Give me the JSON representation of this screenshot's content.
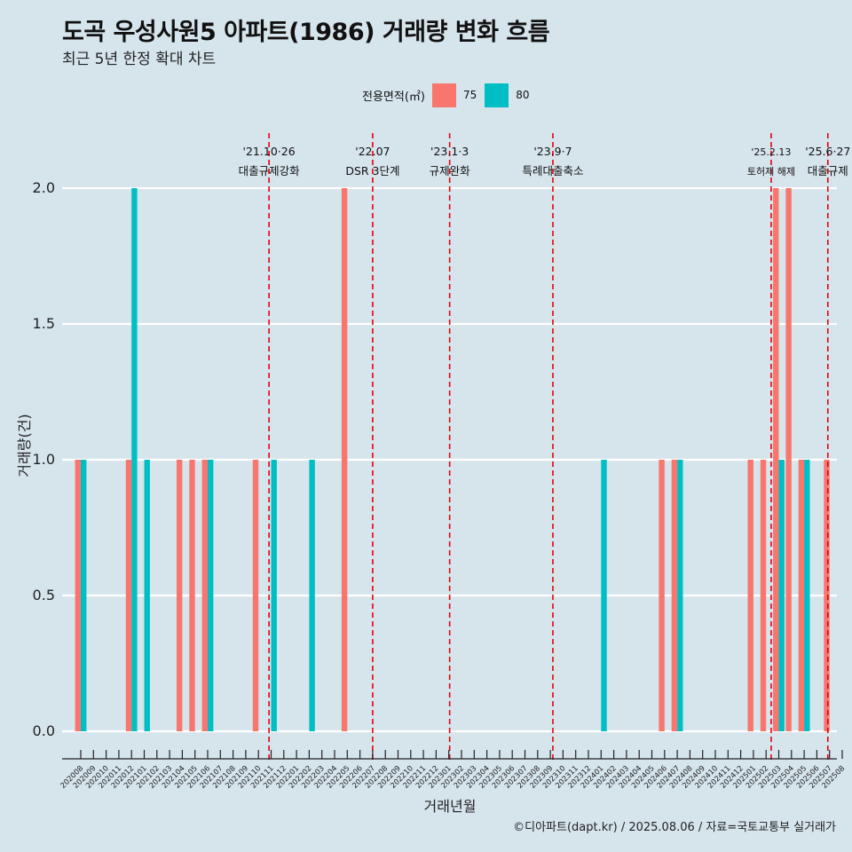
{
  "title": "도곡 우성사원5 아파트(1986) 거래량 변화 흐름",
  "subtitle": "최근 5년 한정 확대 차트",
  "legend": {
    "title": "전용면적(㎡)",
    "items": [
      {
        "label": "75",
        "color": "#f8766d"
      },
      {
        "label": "80",
        "color": "#00bfc4"
      }
    ]
  },
  "caption": "©디아파트(dapt.kr) / 2025.08.06 / 자료=국토교통부 실거래가",
  "chart_data": {
    "type": "bar",
    "xlabel": "거래년월",
    "ylabel": "거래량(건)",
    "ylim": [
      0,
      2
    ],
    "yticks": [
      "0.0",
      "0.5",
      "1.0",
      "1.5",
      "2.0"
    ],
    "grid": true,
    "legend_position": "top",
    "categories": [
      "202008",
      "202009",
      "202010",
      "202011",
      "202012",
      "202101",
      "202102",
      "202103",
      "202104",
      "202105",
      "202106",
      "202107",
      "202108",
      "202109",
      "202110",
      "202111",
      "202112",
      "202201",
      "202202",
      "202203",
      "202204",
      "202205",
      "202206",
      "202207",
      "202208",
      "202209",
      "202210",
      "202211",
      "202212",
      "202301",
      "202302",
      "202303",
      "202304",
      "202305",
      "202306",
      "202307",
      "202308",
      "202309",
      "202310",
      "202311",
      "202312",
      "202401",
      "202402",
      "202403",
      "202404",
      "202405",
      "202406",
      "202407",
      "202408",
      "202409",
      "202410",
      "202411",
      "202412",
      "202501",
      "202502",
      "202503",
      "202504",
      "202505",
      "202506",
      "202507",
      "202508"
    ],
    "series": [
      {
        "name": "75",
        "color": "#f8766d",
        "values": [
          1,
          0,
          0,
          0,
          1,
          0,
          0,
          0,
          1,
          1,
          1,
          0,
          0,
          0,
          1,
          0,
          0,
          0,
          0,
          0,
          0,
          2,
          0,
          0,
          0,
          0,
          0,
          0,
          0,
          0,
          0,
          0,
          0,
          0,
          0,
          0,
          0,
          0,
          0,
          0,
          0,
          0,
          0,
          0,
          0,
          0,
          1,
          1,
          0,
          0,
          0,
          0,
          0,
          1,
          1,
          2,
          2,
          1,
          0,
          1,
          0
        ]
      },
      {
        "name": "80",
        "color": "#00bfc4",
        "values": [
          1,
          0,
          0,
          0,
          2,
          1,
          0,
          0,
          0,
          0,
          1,
          0,
          0,
          0,
          0,
          1,
          0,
          0,
          1,
          0,
          0,
          0,
          0,
          0,
          0,
          0,
          0,
          0,
          0,
          0,
          0,
          0,
          0,
          0,
          0,
          0,
          0,
          0,
          0,
          0,
          0,
          1,
          0,
          0,
          0,
          0,
          0,
          1,
          0,
          0,
          0,
          0,
          0,
          0,
          0,
          1,
          0,
          1,
          0,
          0,
          0
        ]
      }
    ],
    "events": [
      {
        "date": "2021-10-26",
        "label_top": "'21.10·26",
        "label_bottom": "대출규제강화"
      },
      {
        "date": "2022-07",
        "label_top": "'22.07",
        "label_bottom": "DSR 3단계"
      },
      {
        "date": "2023-01-03",
        "label_top": "'23.1·3",
        "label_bottom": "규제완화"
      },
      {
        "date": "2023-09-07",
        "label_top": "'23.9·7",
        "label_bottom": "특례대출축소"
      },
      {
        "date": "2025-02-13",
        "label_top": "'25.2.13",
        "label_bottom": "토허제 해제"
      },
      {
        "date": "2025-06-27",
        "label_top": "'25.6·27",
        "label_bottom": "대출규제"
      }
    ],
    "event_line_color": "#e8000b"
  }
}
